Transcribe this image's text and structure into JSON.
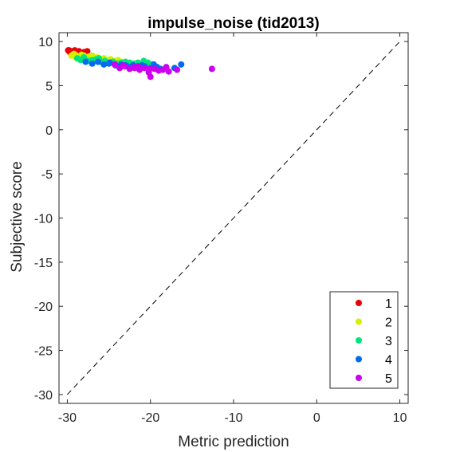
{
  "chart_data": {
    "type": "scatter",
    "title": "impulse_noise (tid2013)",
    "xlabel": "Metric prediction",
    "ylabel": "Subjective score",
    "xlim": [
      -31,
      11
    ],
    "ylim": [
      -31,
      11
    ],
    "x_ticks": [
      -30,
      -20,
      -10,
      0,
      10
    ],
    "y_ticks": [
      10,
      5,
      0,
      -5,
      -10,
      -15,
      -20,
      -25,
      -30
    ],
    "x_tick_labels": [
      "-30",
      "-20",
      "-10",
      "0",
      "10"
    ],
    "y_tick_labels": [
      "10",
      "5",
      "0",
      "-5",
      "-10",
      "-15",
      "-20",
      "-25",
      "-30"
    ],
    "reference_line": {
      "style": "dashed",
      "from": [
        -30,
        -30
      ],
      "to": [
        10,
        10
      ]
    },
    "legend_position": "bottom-right",
    "grid": false,
    "series": [
      {
        "name": "1",
        "color": "#e8000b",
        "points": [
          [
            -29.8,
            9.0
          ],
          [
            -29.5,
            8.9
          ],
          [
            -29.3,
            8.8
          ],
          [
            -29.1,
            9.0
          ],
          [
            -29.6,
            8.7
          ],
          [
            -29.0,
            8.9
          ],
          [
            -28.8,
            8.8
          ],
          [
            -28.6,
            8.9
          ],
          [
            -28.3,
            8.7
          ],
          [
            -28.0,
            8.8
          ],
          [
            -27.6,
            8.9
          ],
          [
            -29.4,
            8.6
          ],
          [
            -28.9,
            8.6
          ],
          [
            -28.5,
            8.6
          ],
          [
            -29.7,
            8.8
          ],
          [
            -29.2,
            8.7
          ],
          [
            -28.2,
            8.5
          ],
          [
            -27.9,
            8.6
          ],
          [
            -29.9,
            9.0
          ],
          [
            -28.7,
            8.7
          ]
        ]
      },
      {
        "name": "2",
        "color": "#d4f000",
        "points": [
          [
            -29.5,
            8.4
          ],
          [
            -29.2,
            8.6
          ],
          [
            -28.9,
            8.4
          ],
          [
            -28.6,
            8.3
          ],
          [
            -28.3,
            8.5
          ],
          [
            -28.0,
            8.4
          ],
          [
            -27.7,
            8.2
          ],
          [
            -27.4,
            8.3
          ],
          [
            -27.0,
            8.4
          ],
          [
            -26.7,
            8.1
          ],
          [
            -26.4,
            8.2
          ],
          [
            -26.0,
            8.0
          ],
          [
            -25.6,
            8.1
          ],
          [
            -25.2,
            7.9
          ],
          [
            -24.8,
            8.0
          ],
          [
            -24.4,
            7.8
          ],
          [
            -23.9,
            7.9
          ],
          [
            -23.5,
            7.7
          ],
          [
            -29.0,
            8.2
          ],
          [
            -27.2,
            8.0
          ]
        ]
      },
      {
        "name": "3",
        "color": "#00e57a",
        "points": [
          [
            -28.8,
            8.1
          ],
          [
            -28.4,
            7.9
          ],
          [
            -28.0,
            8.2
          ],
          [
            -27.5,
            7.8
          ],
          [
            -27.0,
            7.9
          ],
          [
            -26.5,
            8.0
          ],
          [
            -26.0,
            7.7
          ],
          [
            -25.5,
            7.8
          ],
          [
            -25.0,
            7.6
          ],
          [
            -24.5,
            7.7
          ],
          [
            -24.0,
            7.5
          ],
          [
            -23.5,
            7.6
          ],
          [
            -23.0,
            7.7
          ],
          [
            -22.5,
            7.6
          ],
          [
            -22.0,
            7.5
          ],
          [
            -21.5,
            7.6
          ],
          [
            -20.8,
            7.8
          ],
          [
            -20.3,
            7.6
          ],
          [
            -19.8,
            7.4
          ],
          [
            -26.2,
            8.1
          ]
        ]
      },
      {
        "name": "4",
        "color": "#006bf0",
        "points": [
          [
            -27.8,
            7.7
          ],
          [
            -27.0,
            7.5
          ],
          [
            -26.3,
            7.7
          ],
          [
            -25.6,
            7.4
          ],
          [
            -24.9,
            7.6
          ],
          [
            -24.2,
            7.3
          ],
          [
            -23.5,
            7.4
          ],
          [
            -22.8,
            7.2
          ],
          [
            -22.1,
            7.3
          ],
          [
            -21.4,
            7.1
          ],
          [
            -20.7,
            7.2
          ],
          [
            -20.0,
            7.0
          ],
          [
            -19.6,
            7.4
          ],
          [
            -19.2,
            7.1
          ],
          [
            -18.8,
            6.9
          ],
          [
            -16.3,
            7.4
          ],
          [
            -17.1,
            7.0
          ],
          [
            -25.0,
            7.5
          ],
          [
            -23.0,
            7.3
          ],
          [
            -21.0,
            7.3
          ]
        ]
      },
      {
        "name": "5",
        "color": "#cc00f0",
        "points": [
          [
            -24.3,
            7.4
          ],
          [
            -23.7,
            7.0
          ],
          [
            -23.1,
            7.2
          ],
          [
            -22.5,
            6.9
          ],
          [
            -21.9,
            7.0
          ],
          [
            -21.3,
            6.8
          ],
          [
            -20.7,
            7.0
          ],
          [
            -20.1,
            6.9
          ],
          [
            -19.5,
            6.9
          ],
          [
            -19.0,
            6.7
          ],
          [
            -18.5,
            6.8
          ],
          [
            -20.0,
            6.0
          ],
          [
            -20.2,
            6.5
          ],
          [
            -17.8,
            6.6
          ],
          [
            -16.8,
            6.8
          ],
          [
            -12.6,
            6.9
          ],
          [
            -18.1,
            7.1
          ],
          [
            -22.0,
            7.1
          ],
          [
            -23.3,
            7.3
          ],
          [
            -21.5,
            7.2
          ]
        ]
      }
    ]
  }
}
